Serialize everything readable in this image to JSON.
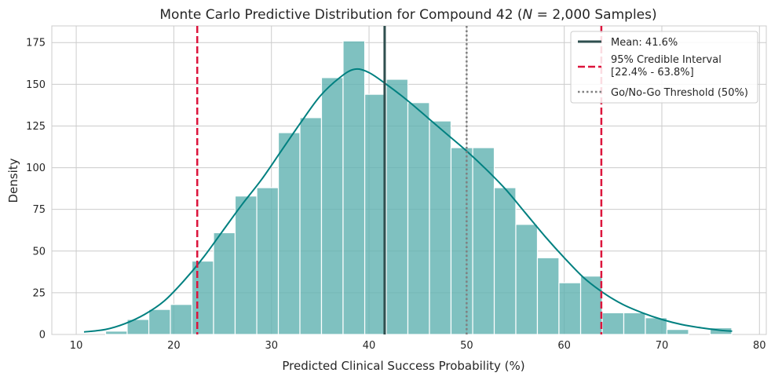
{
  "chart_data": {
    "type": "histogram",
    "title": "Monte Carlo Predictive Distribution for Compound 42 (N = 2,000 Samples)",
    "title_parts": {
      "prefix": "Monte Carlo Predictive Distribution for Compound 42 (",
      "italic": "N",
      "suffix": " = 2,000 Samples)"
    },
    "xlabel": "Predicted Clinical Success Probability (%)",
    "ylabel": "Density",
    "xlim": [
      7.5,
      80.7
    ],
    "ylim": [
      0,
      185
    ],
    "xticks": [
      10,
      20,
      30,
      40,
      50,
      60,
      70,
      80
    ],
    "yticks": [
      0,
      25,
      50,
      75,
      100,
      125,
      150,
      175
    ],
    "grid": true,
    "bins": {
      "edges": [
        10.8,
        13.01,
        15.22,
        17.44,
        19.65,
        21.86,
        24.07,
        26.28,
        28.5,
        30.71,
        32.92,
        35.13,
        37.34,
        39.56,
        41.77,
        43.98,
        46.19,
        48.4,
        50.62,
        52.83,
        55.04,
        57.25,
        59.46,
        61.68,
        63.89,
        66.1,
        68.31,
        70.52,
        72.74,
        74.95,
        77.16
      ],
      "counts": [
        0,
        2,
        9,
        15,
        18,
        44,
        61,
        83,
        88,
        121,
        130,
        154,
        176,
        144,
        153,
        139,
        128,
        112,
        112,
        88,
        66,
        46,
        31,
        35,
        13,
        13,
        10,
        3,
        0,
        4
      ],
      "color": "#5fb1b0"
    },
    "kde": {
      "x": [
        10.8,
        13,
        15,
        17,
        19,
        21,
        23,
        25,
        27,
        29,
        31,
        33,
        35,
        37,
        38.5,
        40,
        42,
        44,
        46,
        48,
        50,
        52,
        54,
        56,
        58,
        60,
        62,
        64,
        66,
        68,
        70,
        72,
        74,
        76,
        77.2
      ],
      "y": [
        1.5,
        3,
        6.5,
        12,
        20,
        32,
        46,
        62,
        78,
        93,
        110,
        127,
        143,
        154,
        159,
        157,
        149,
        140,
        130,
        120,
        110,
        99,
        87,
        73,
        59,
        46,
        34,
        25,
        18,
        13,
        9,
        6,
        4,
        2.5,
        2
      ],
      "color": "#008080"
    },
    "mean": {
      "value": 41.6,
      "color": "#2f4f4f"
    },
    "credible_interval": {
      "low": 22.4,
      "high": 63.8,
      "color": "#dc143c"
    },
    "threshold": {
      "value": 50,
      "color": "#808080"
    },
    "legend": {
      "position": "top-right",
      "entries": [
        {
          "label": "Mean: 41.6%"
        },
        {
          "label": "95% Credible Interval",
          "label_line2": "[22.4% - 63.8%]"
        },
        {
          "label": "Go/No-Go Threshold (50%)"
        }
      ]
    }
  }
}
